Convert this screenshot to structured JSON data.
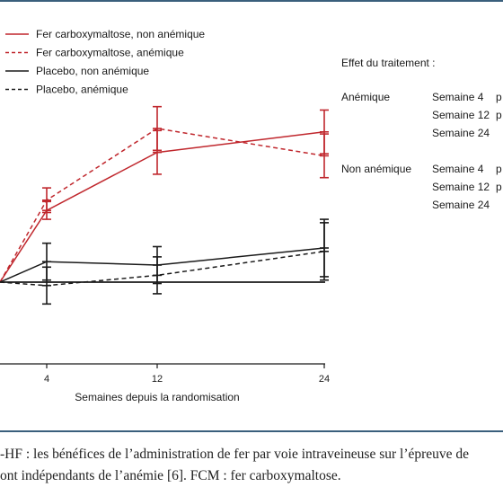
{
  "colors": {
    "rule": "#3a5f7c",
    "iron": "#c0272d",
    "placebo": "#1a1a1a"
  },
  "chart_data": {
    "type": "line",
    "x": [
      0,
      4,
      12,
      24
    ],
    "xticks": [
      "4",
      "12",
      "24"
    ],
    "xlabel": "Semaines depuis la randomisation",
    "ylabel": "",
    "series": [
      {
        "name": "Fer carboxymaltose, non anémique",
        "color": "#c0272d",
        "dash": false,
        "values": [
          0,
          10.5,
          19,
          22
        ],
        "err": [
          0,
          1.3,
          3.2,
          3.2
        ]
      },
      {
        "name": "Fer carboxymaltose, anémique",
        "color": "#c0272d",
        "dash": true,
        "values": [
          0,
          12,
          22.5,
          18.5
        ],
        "err": [
          0,
          1.8,
          3.2,
          3.2
        ]
      },
      {
        "name": "Placebo, non anémique",
        "color": "#1a1a1a",
        "dash": false,
        "values": [
          0,
          3,
          2.5,
          5
        ],
        "err": [
          0,
          2.7,
          2.7,
          4.2
        ]
      },
      {
        "name": "Placebo, anémique",
        "color": "#1a1a1a",
        "dash": true,
        "values": [
          0,
          -0.5,
          1,
          4.5
        ],
        "err": [
          0,
          2.7,
          2.7,
          4.2
        ]
      }
    ]
  },
  "legend_items": [
    "Fer carboxymaltose, non anémique",
    "Fer carboxymaltose, anémique",
    "Placebo, non anémique",
    "Placebo, anémique"
  ],
  "effect": {
    "title": "Effet du traitement :",
    "groups": [
      {
        "label": "Anémique",
        "rows": [
          "Semaine 4",
          "Semaine 12",
          "Semaine 24"
        ],
        "pvals": [
          "p",
          "p",
          ""
        ]
      },
      {
        "label": "Non anémique",
        "rows": [
          "Semaine 4",
          "Semaine 12",
          "Semaine 24"
        ],
        "pvals": [
          "p",
          "p",
          ""
        ]
      }
    ]
  },
  "caption": {
    "line1": "-HF : les bénéfices de l’administration de fer par voie intraveineuse sur l’épreuve de",
    "line2": "ont indépendants de l’anémie [6]. FCM : fer carboxymaltose."
  }
}
